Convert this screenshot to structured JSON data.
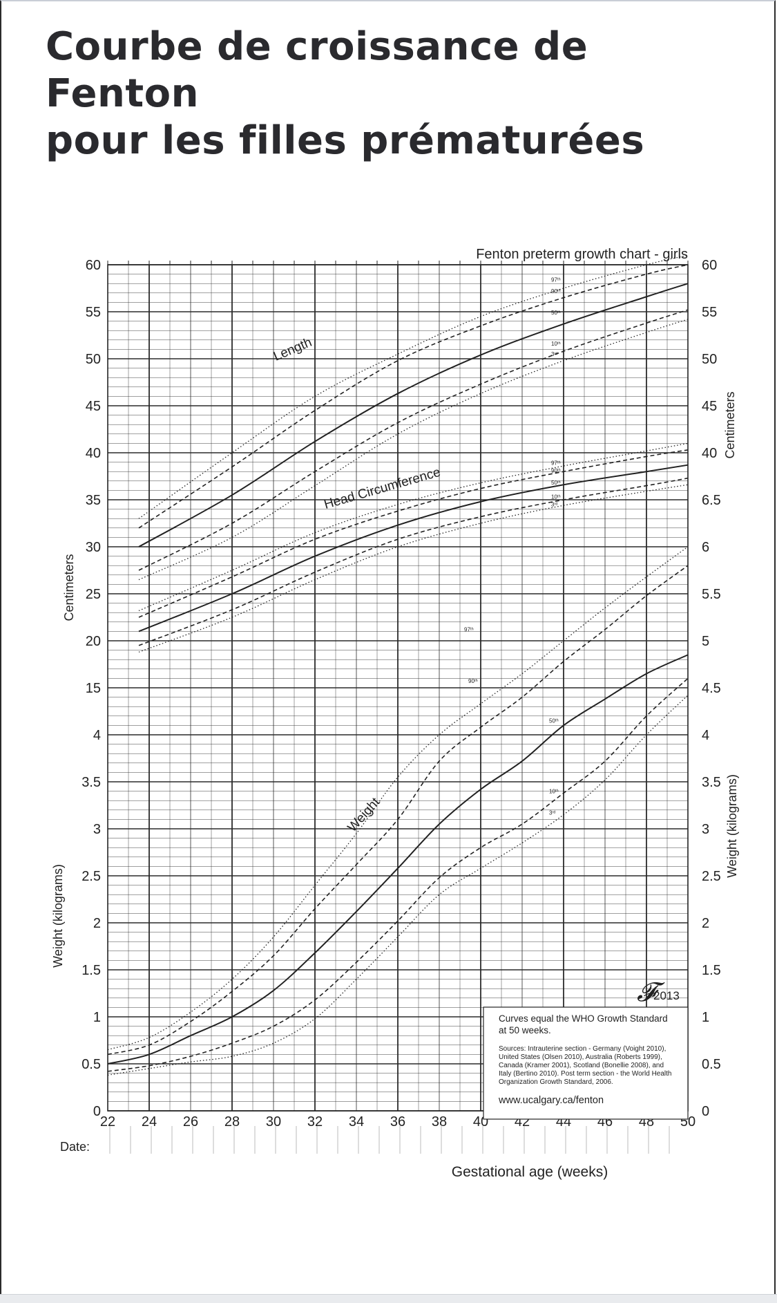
{
  "page": {
    "title_line1": "Courbe de croissance de Fenton",
    "title_line2": "pour les filles prématurées"
  },
  "chart_data": {
    "type": "line",
    "title": "Fenton preterm growth chart - girls",
    "xlabel": "Gestational age (weeks)",
    "ylabel_left_top": "Centimeters",
    "ylabel_left_bottom": "Weight (kilograms)",
    "ylabel_right_top": "Centimeters",
    "ylabel_right_bottom": "Weight (kilograms)",
    "date_label": "Date:",
    "x_ticks": [
      22,
      24,
      26,
      28,
      30,
      32,
      34,
      36,
      38,
      40,
      42,
      44,
      46,
      48,
      50
    ],
    "xlim": [
      22,
      50
    ],
    "left_axis_ticks": [
      "60",
      "55",
      "50",
      "45",
      "40",
      "35",
      "30",
      "25",
      "20",
      "15",
      "4",
      "3.5",
      "3",
      "2.5",
      "2",
      "1.5",
      "1",
      "0.5",
      "0"
    ],
    "right_axis_ticks": [
      "60",
      "55",
      "50",
      "45",
      "40",
      "6.5",
      "6",
      "5.5",
      "5",
      "4.5",
      "4",
      "3.5",
      "3",
      "2.5",
      "2",
      "1.5",
      "1",
      "0.5",
      "0"
    ],
    "grid": true,
    "curve_labels": {
      "length": "Length",
      "head": "Head Circumference",
      "weight": "Weight"
    },
    "percentile_labels": [
      "97ᵗʰ",
      "90ᵗʰ",
      "50ᵗʰ",
      "10ᵗʰ",
      "3ʳᵈ"
    ],
    "length_series": [
      {
        "name": "97th",
        "x": [
          23.5,
          28,
          32,
          36,
          40,
          44,
          48,
          50
        ],
        "y": [
          33,
          40,
          46,
          50.5,
          54.5,
          57.5,
          60,
          61
        ]
      },
      {
        "name": "90th",
        "x": [
          23.5,
          28,
          32,
          36,
          40,
          44,
          48,
          50
        ],
        "y": [
          32,
          38.5,
          44.5,
          49.8,
          53.5,
          56.5,
          59,
          60
        ]
      },
      {
        "name": "50th",
        "x": [
          23.5,
          28,
          32,
          36,
          40,
          44,
          48,
          50
        ],
        "y": [
          30,
          35.5,
          41.2,
          46.3,
          50.4,
          53.7,
          56.6,
          58
        ]
      },
      {
        "name": "10th",
        "x": [
          23.5,
          28,
          32,
          36,
          40,
          44,
          48,
          50
        ],
        "y": [
          27.5,
          32.5,
          38,
          43.2,
          47.3,
          50.8,
          53.8,
          55.2
        ]
      },
      {
        "name": "3rd",
        "x": [
          23.5,
          28,
          32,
          36,
          40,
          44,
          48,
          50
        ],
        "y": [
          26.5,
          31,
          36.5,
          42,
          46.3,
          49.8,
          52.8,
          54.2
        ]
      }
    ],
    "head_series": [
      {
        "name": "97th",
        "x": [
          23.5,
          28,
          32,
          36,
          40,
          44,
          48,
          50
        ],
        "y": [
          23.2,
          27.5,
          31.5,
          34.5,
          36.8,
          38.6,
          40.2,
          41
        ]
      },
      {
        "name": "90th",
        "x": [
          23.5,
          28,
          32,
          36,
          40,
          44,
          48,
          50
        ],
        "y": [
          22.5,
          26.8,
          30.8,
          33.8,
          36.2,
          38,
          39.6,
          40.3
        ]
      },
      {
        "name": "50th",
        "x": [
          23.5,
          28,
          32,
          36,
          40,
          44,
          48,
          50
        ],
        "y": [
          21,
          25,
          29,
          32.3,
          34.8,
          36.6,
          38,
          38.7
        ]
      },
      {
        "name": "10th",
        "x": [
          23.5,
          28,
          32,
          36,
          40,
          44,
          48,
          50
        ],
        "y": [
          19.5,
          23.3,
          27.3,
          30.8,
          33.2,
          35,
          36.5,
          37.3
        ]
      },
      {
        "name": "3rd",
        "x": [
          23.5,
          28,
          32,
          36,
          40,
          44,
          48,
          50
        ],
        "y": [
          18.8,
          22.5,
          26.5,
          30,
          32.5,
          34.4,
          35.9,
          36.6
        ]
      }
    ],
    "weight_series": [
      {
        "name": "97th",
        "x": [
          22,
          24,
          26,
          28,
          30,
          32,
          34,
          36,
          38,
          40,
          42,
          44,
          46,
          48,
          50
        ],
        "y": [
          0.65,
          0.78,
          1.05,
          1.4,
          1.85,
          2.4,
          2.95,
          3.55,
          4.0,
          4.33,
          4.65,
          5.0,
          5.35,
          5.68,
          6.0
        ]
      },
      {
        "name": "90th",
        "x": [
          22,
          24,
          26,
          28,
          30,
          32,
          34,
          36,
          38,
          40,
          42,
          44,
          46,
          48,
          50
        ],
        "y": [
          0.6,
          0.7,
          0.95,
          1.27,
          1.65,
          2.15,
          2.62,
          3.1,
          3.72,
          4.08,
          4.4,
          4.78,
          5.12,
          5.48,
          5.8
        ]
      },
      {
        "name": "50th",
        "x": [
          22,
          24,
          26,
          28,
          30,
          32,
          34,
          36,
          38,
          40,
          42,
          44,
          46,
          48,
          50
        ],
        "y": [
          0.5,
          0.6,
          0.8,
          1.0,
          1.28,
          1.68,
          2.12,
          2.58,
          3.05,
          3.42,
          3.72,
          4.1,
          4.38,
          4.65,
          4.85
        ]
      },
      {
        "name": "10th",
        "x": [
          22,
          24,
          26,
          28,
          30,
          32,
          34,
          36,
          38,
          40,
          42,
          44,
          46,
          48,
          50
        ],
        "y": [
          0.42,
          0.48,
          0.58,
          0.72,
          0.9,
          1.18,
          1.58,
          2.02,
          2.48,
          2.8,
          3.05,
          3.38,
          3.72,
          4.2,
          4.6
        ]
      },
      {
        "name": "3rd",
        "x": [
          22,
          24,
          26,
          28,
          30,
          32,
          34,
          36,
          38,
          40,
          42,
          44,
          46,
          48,
          50
        ],
        "y": [
          0.38,
          0.45,
          0.52,
          0.58,
          0.72,
          0.98,
          1.4,
          1.85,
          2.3,
          2.58,
          2.85,
          3.15,
          3.52,
          4.0,
          4.42
        ]
      }
    ],
    "legend_box": {
      "logo_text": "2013",
      "line1": "Curves equal the WHO Growth Standard",
      "line2": "at 50 weeks.",
      "sources": [
        "Sources: Intrauterine section - Germany (Voight 2010),",
        "United States (Olsen 2010), Australia (Roberts 1999),",
        "Canada (Kramer 2001), Scotland (Bonellie 2008), and",
        "Italy (Bertino 2010). Post term section - the World Health",
        "Organization Growth Standard, 2006."
      ],
      "url": "www.ucalgary.ca/fenton"
    },
    "colors": {
      "line": "#222222",
      "grid": "#2a2a2a",
      "background": "#ffffff"
    }
  }
}
